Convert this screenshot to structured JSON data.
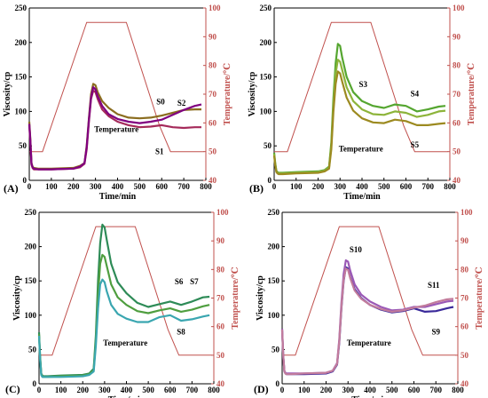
{
  "colors": {
    "temperature": "#c0504d",
    "axis_right": "#c0504d"
  },
  "chart_data": [
    {
      "type": "line",
      "panel_label": "(A)",
      "xlabel": "Time/min",
      "ylabel": "Viscosity/cp",
      "ylabel_right": "Temperature/℃",
      "xlim": [
        0,
        800
      ],
      "ylim": [
        0,
        250
      ],
      "ylim_right": [
        40,
        100
      ],
      "xticks": [
        "0",
        "100",
        "200",
        "300",
        "400",
        "500",
        "600",
        "700",
        "800"
      ],
      "yticks": [
        "0",
        "50",
        "100",
        "150",
        "200",
        "250"
      ],
      "yticks_right": [
        "40",
        "50",
        "60",
        "70",
        "80",
        "90",
        "100"
      ],
      "temperature": {
        "x": [
          0,
          15,
          30,
          60,
          260,
          290,
          440,
          590,
          640,
          790
        ],
        "y": [
          50,
          50,
          50,
          50,
          95,
          95,
          95,
          59,
          50,
          50
        ]
      },
      "series": [
        {
          "name": "S0",
          "color": "#8b6d1f",
          "x": [
            0,
            5,
            10,
            15,
            20,
            40,
            100,
            200,
            230,
            250,
            260,
            270,
            280,
            290,
            300,
            310,
            330,
            360,
            400,
            450,
            500,
            550,
            600,
            650,
            700,
            750,
            780
          ],
          "y": [
            85,
            60,
            25,
            20,
            18,
            17,
            17,
            18,
            21,
            25,
            50,
            90,
            125,
            140,
            138,
            128,
            115,
            105,
            96,
            91,
            90,
            91,
            94,
            98,
            102,
            103,
            103
          ]
        },
        {
          "name": "S1",
          "color": "#a52a5a",
          "x": [
            0,
            5,
            10,
            15,
            20,
            40,
            100,
            200,
            230,
            250,
            260,
            270,
            280,
            290,
            300,
            310,
            330,
            360,
            400,
            450,
            500,
            550,
            600,
            650,
            700,
            750,
            780
          ],
          "y": [
            80,
            55,
            23,
            18,
            16,
            16,
            16,
            17,
            19,
            24,
            45,
            85,
            118,
            130,
            128,
            118,
            103,
            93,
            85,
            80,
            77,
            78,
            80,
            77,
            76,
            77,
            77
          ]
        },
        {
          "name": "S2",
          "color": "#800080",
          "x": [
            0,
            5,
            10,
            15,
            20,
            40,
            100,
            200,
            230,
            250,
            260,
            270,
            280,
            290,
            300,
            310,
            330,
            360,
            400,
            450,
            500,
            550,
            600,
            650,
            700,
            750,
            780
          ],
          "y": [
            82,
            58,
            24,
            19,
            17,
            16,
            16,
            17,
            20,
            25,
            48,
            88,
            120,
            135,
            132,
            122,
            108,
            96,
            89,
            85,
            83,
            85,
            88,
            95,
            102,
            108,
            110
          ]
        }
      ],
      "annotations": [
        {
          "text": "S0",
          "x": 595,
          "y": 110
        },
        {
          "text": "S2",
          "x": 690,
          "y": 108
        },
        {
          "text": "S1",
          "x": 590,
          "y": 38
        },
        {
          "text": "Temperature",
          "x": 395,
          "y": 70
        }
      ]
    },
    {
      "type": "line",
      "panel_label": "(B)",
      "xlabel": "Time/min",
      "ylabel": "Viscosity/cp",
      "ylabel_right": "Temperature/℃",
      "xlim": [
        0,
        800
      ],
      "ylim": [
        0,
        250
      ],
      "ylim_right": [
        40,
        100
      ],
      "xticks": [
        "0",
        "100",
        "200",
        "300",
        "400",
        "500",
        "600",
        "700",
        "800"
      ],
      "yticks": [
        "0",
        "50",
        "100",
        "150",
        "200",
        "250"
      ],
      "yticks_right": [
        "40",
        "50",
        "60",
        "70",
        "80",
        "90",
        "100"
      ],
      "temperature": {
        "x": [
          0,
          15,
          30,
          60,
          260,
          290,
          440,
          590,
          640,
          790
        ],
        "y": [
          50,
          50,
          50,
          50,
          95,
          95,
          95,
          59,
          50,
          50
        ]
      },
      "series": [
        {
          "name": "S3",
          "color": "#55a630",
          "x": [
            0,
            5,
            10,
            15,
            20,
            40,
            100,
            200,
            230,
            250,
            260,
            270,
            280,
            290,
            300,
            310,
            330,
            360,
            400,
            450,
            500,
            550,
            600,
            650,
            700,
            750,
            780
          ],
          "y": [
            40,
            25,
            14,
            12,
            11,
            11,
            12,
            13,
            15,
            20,
            55,
            120,
            170,
            198,
            195,
            178,
            150,
            128,
            115,
            108,
            105,
            110,
            108,
            100,
            103,
            107,
            108
          ]
        },
        {
          "name": "S4",
          "color": "#8db43a",
          "x": [
            0,
            5,
            10,
            15,
            20,
            40,
            100,
            200,
            230,
            250,
            260,
            270,
            280,
            290,
            300,
            310,
            330,
            360,
            400,
            450,
            500,
            550,
            600,
            650,
            700,
            750,
            780
          ],
          "y": [
            38,
            23,
            13,
            11,
            10,
            10,
            11,
            12,
            14,
            19,
            50,
            110,
            155,
            175,
            172,
            160,
            135,
            115,
            103,
            96,
            95,
            100,
            98,
            92,
            95,
            100,
            101
          ]
        },
        {
          "name": "S5",
          "color": "#9c8a20",
          "x": [
            0,
            5,
            10,
            15,
            20,
            40,
            100,
            200,
            230,
            250,
            260,
            270,
            280,
            290,
            300,
            310,
            330,
            360,
            400,
            450,
            500,
            550,
            600,
            650,
            700,
            750,
            780
          ],
          "y": [
            36,
            22,
            12,
            10,
            9,
            9,
            10,
            11,
            13,
            17,
            45,
            100,
            140,
            158,
            155,
            143,
            120,
            101,
            90,
            84,
            83,
            88,
            86,
            80,
            80,
            82,
            83
          ]
        }
      ],
      "annotations": [
        {
          "text": "S3",
          "x": 405,
          "y": 135
        },
        {
          "text": "S4",
          "x": 640,
          "y": 122
        },
        {
          "text": "S5",
          "x": 640,
          "y": 48
        },
        {
          "text": "Temperature",
          "x": 395,
          "y": 42
        }
      ]
    },
    {
      "type": "line",
      "panel_label": "(C)",
      "xlabel": "Time/min",
      "ylabel": "Viscosity/cp",
      "ylabel_right": "Temperature/℃",
      "xlim": [
        0,
        800
      ],
      "ylim": [
        0,
        250
      ],
      "ylim_right": [
        40,
        100
      ],
      "xticks": [
        "0",
        "100",
        "200",
        "300",
        "400",
        "500",
        "600",
        "700",
        "800"
      ],
      "yticks": [
        "0",
        "50",
        "100",
        "150",
        "200",
        "250"
      ],
      "yticks_right": [
        "40",
        "50",
        "60",
        "70",
        "80",
        "90",
        "100"
      ],
      "temperature": {
        "x": [
          0,
          15,
          30,
          60,
          260,
          290,
          440,
          590,
          640,
          790
        ],
        "y": [
          50,
          50,
          50,
          50,
          95,
          95,
          95,
          59,
          50,
          50
        ]
      },
      "series": [
        {
          "name": "S6",
          "color": "#2e8b57",
          "x": [
            0,
            5,
            10,
            15,
            20,
            40,
            100,
            200,
            230,
            250,
            260,
            270,
            280,
            290,
            300,
            310,
            330,
            360,
            400,
            450,
            500,
            550,
            600,
            650,
            700,
            750,
            780
          ],
          "y": [
            75,
            40,
            15,
            12,
            11,
            11,
            12,
            13,
            15,
            22,
            70,
            150,
            205,
            232,
            228,
            210,
            175,
            148,
            132,
            118,
            112,
            116,
            120,
            115,
            120,
            126,
            127
          ]
        },
        {
          "name": "S7",
          "color": "#4f9e3f",
          "x": [
            0,
            5,
            10,
            15,
            20,
            40,
            100,
            200,
            230,
            250,
            260,
            270,
            280,
            290,
            300,
            310,
            330,
            360,
            400,
            450,
            500,
            550,
            600,
            650,
            700,
            750,
            780
          ],
          "y": [
            72,
            38,
            14,
            11,
            10,
            10,
            11,
            12,
            14,
            20,
            62,
            130,
            175,
            188,
            185,
            172,
            145,
            126,
            115,
            106,
            103,
            107,
            110,
            105,
            108,
            113,
            115
          ]
        },
        {
          "name": "S8",
          "color": "#3aa6b0",
          "x": [
            0,
            5,
            10,
            15,
            20,
            40,
            100,
            200,
            230,
            250,
            260,
            270,
            280,
            290,
            300,
            310,
            330,
            360,
            400,
            450,
            500,
            550,
            600,
            650,
            700,
            750,
            780
          ],
          "y": [
            70,
            36,
            13,
            10,
            10,
            10,
            10,
            11,
            13,
            18,
            55,
            110,
            145,
            152,
            148,
            135,
            115,
            102,
            95,
            90,
            90,
            97,
            100,
            92,
            94,
            98,
            100
          ]
        }
      ],
      "annotations": [
        {
          "text": "S6",
          "x": 640,
          "y": 145
        },
        {
          "text": "S7",
          "x": 710,
          "y": 145
        },
        {
          "text": "S8",
          "x": 650,
          "y": 72
        },
        {
          "text": "Temperature",
          "x": 395,
          "y": 56
        }
      ]
    },
    {
      "type": "line",
      "panel_label": "(D)",
      "xlabel": "Time/min",
      "ylabel": "Viscosity/cp",
      "ylabel_right": "Temperature/℃",
      "xlim": [
        0,
        800
      ],
      "ylim": [
        0,
        250
      ],
      "ylim_right": [
        40,
        100
      ],
      "xticks": [
        "0",
        "100",
        "200",
        "300",
        "400",
        "500",
        "600",
        "700",
        "800"
      ],
      "yticks": [
        "0",
        "50",
        "100",
        "150",
        "200",
        "250"
      ],
      "yticks_right": [
        "40",
        "50",
        "60",
        "70",
        "80",
        "90",
        "100"
      ],
      "temperature": {
        "x": [
          0,
          15,
          30,
          60,
          260,
          290,
          440,
          590,
          640,
          790
        ],
        "y": [
          50,
          50,
          50,
          50,
          95,
          95,
          95,
          59,
          50,
          50
        ]
      },
      "series": [
        {
          "name": "S9",
          "color": "#3a2a9a",
          "x": [
            0,
            5,
            10,
            15,
            20,
            40,
            100,
            200,
            230,
            250,
            260,
            270,
            280,
            290,
            300,
            310,
            330,
            360,
            400,
            450,
            500,
            550,
            600,
            650,
            700,
            750,
            780
          ],
          "y": [
            78,
            40,
            18,
            15,
            14,
            14,
            14,
            15,
            18,
            28,
            60,
            110,
            150,
            170,
            168,
            155,
            138,
            125,
            115,
            108,
            104,
            106,
            110,
            105,
            106,
            110,
            112
          ]
        },
        {
          "name": "S10",
          "color": "#9b59b6",
          "x": [
            0,
            5,
            10,
            15,
            20,
            40,
            100,
            200,
            230,
            250,
            260,
            270,
            280,
            290,
            300,
            310,
            330,
            360,
            400,
            450,
            500,
            550,
            600,
            650,
            700,
            750,
            780
          ],
          "y": [
            80,
            42,
            19,
            16,
            15,
            15,
            15,
            16,
            19,
            30,
            65,
            118,
            160,
            180,
            178,
            165,
            145,
            130,
            120,
            112,
            107,
            108,
            112,
            112,
            116,
            120,
            121
          ]
        },
        {
          "name": "S11",
          "color": "#c27c9c",
          "x": [
            0,
            5,
            10,
            15,
            20,
            40,
            100,
            200,
            230,
            250,
            260,
            270,
            280,
            290,
            300,
            310,
            330,
            360,
            400,
            450,
            500,
            550,
            600,
            650,
            700,
            750,
            780
          ],
          "y": [
            79,
            41,
            18,
            15,
            14,
            14,
            15,
            16,
            19,
            29,
            62,
            112,
            152,
            168,
            166,
            154,
            136,
            124,
            115,
            109,
            105,
            107,
            111,
            114,
            119,
            123,
            124
          ]
        }
      ],
      "annotations": [
        {
          "text": "S10",
          "x": 335,
          "y": 192
        },
        {
          "text": "S11",
          "x": 690,
          "y": 140
        },
        {
          "text": "S9",
          "x": 700,
          "y": 72
        },
        {
          "text": "Temperature",
          "x": 395,
          "y": 56
        }
      ]
    }
  ]
}
